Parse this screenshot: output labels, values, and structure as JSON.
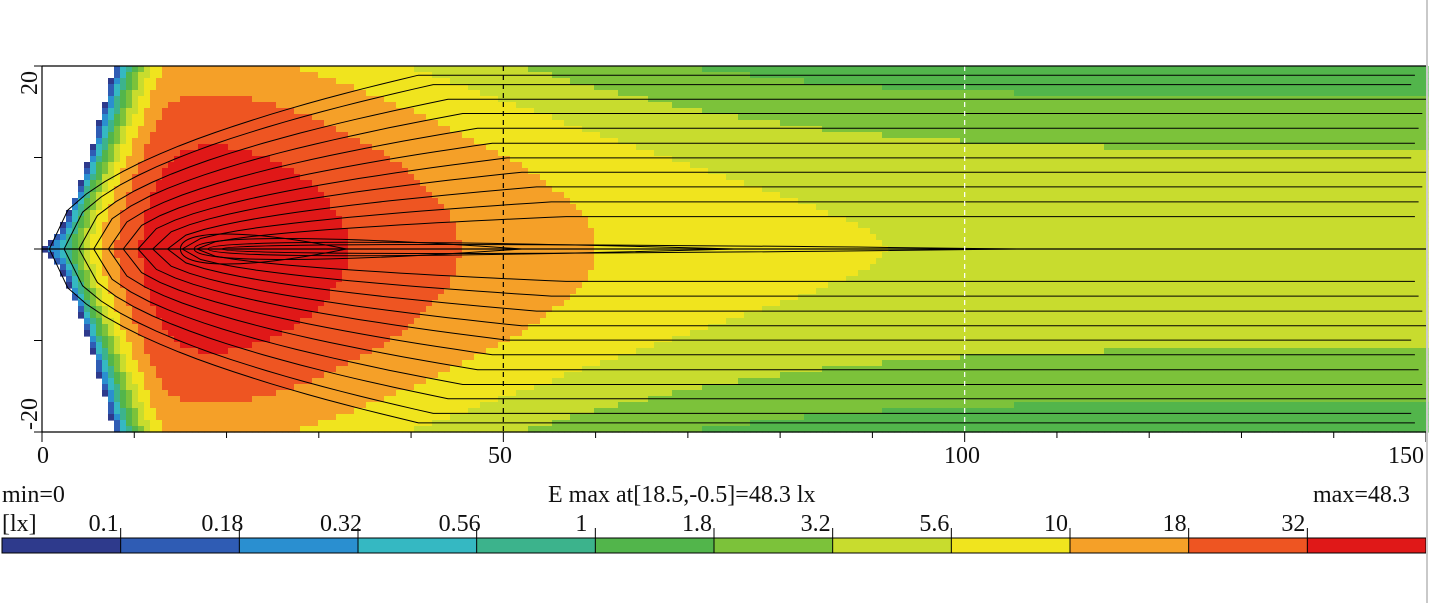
{
  "chart_data": {
    "type": "heatmap",
    "title": "",
    "xlabel": "",
    "ylabel": "",
    "xlim": [
      0,
      150
    ],
    "ylim": [
      -20,
      20
    ],
    "x_ticks": [
      "0",
      "50",
      "100",
      "150"
    ],
    "y_ticks": [
      "20",
      "-20"
    ],
    "unit": "[lx]",
    "min_label": "min=0",
    "max_label": "max=48.3",
    "emax_label": "E max at[18.5,-0.5]=48.3 lx",
    "emax_point": {
      "x": 18.5,
      "y": -0.5,
      "value": 48.3
    },
    "colorbar": {
      "levels": [
        "0.1",
        "0.18",
        "0.32",
        "0.56",
        "1",
        "1.8",
        "3.2",
        "5.6",
        "10",
        "18",
        "32"
      ],
      "colors": [
        "#2e3a8c",
        "#2f5cb4",
        "#2a8fd0",
        "#35b8c2",
        "#3cb38c",
        "#52b54b",
        "#7cc23a",
        "#c8dc2e",
        "#f0e41e",
        "#f5a028",
        "#ee5522",
        "#e01818"
      ]
    },
    "contour_levels": [
      0.1,
      0.18,
      0.32,
      0.56,
      1,
      1.8,
      3.2,
      5.6,
      10,
      18,
      32
    ],
    "dashed_guides_x": [
      50,
      100
    ],
    "center_line_y": 0,
    "grid": false
  }
}
